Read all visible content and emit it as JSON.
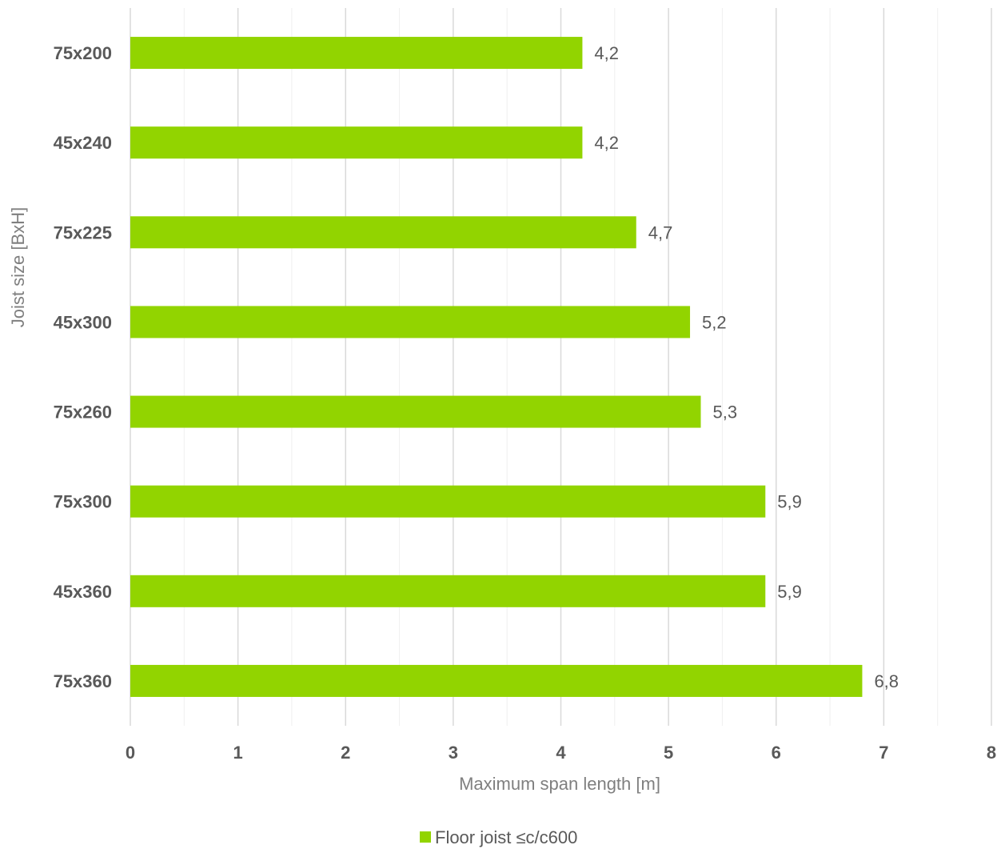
{
  "chart_data": {
    "type": "bar",
    "orientation": "horizontal",
    "categories": [
      "75x200",
      "45x240",
      "75x225",
      "45x300",
      "75x260",
      "75x300",
      "45x360",
      "75x360"
    ],
    "series": [
      {
        "name": "Floor joist ≤c/c600",
        "values": [
          4.2,
          4.2,
          4.7,
          5.2,
          5.3,
          5.9,
          5.9,
          6.8
        ],
        "data_labels": [
          "4,2",
          "4,2",
          "4,7",
          "5,2",
          "5,3",
          "5,9",
          "5,9",
          "6,8"
        ],
        "color": "#92d400"
      }
    ],
    "xlabel": "Maximum span length [m]",
    "ylabel": "Joist size [BxH]",
    "xlim": [
      0,
      8
    ],
    "x_ticks": [
      "0",
      "1",
      "2",
      "3",
      "4",
      "5",
      "6",
      "7",
      "8"
    ],
    "grid": "vertical major and minor",
    "legend_position": "bottom"
  }
}
